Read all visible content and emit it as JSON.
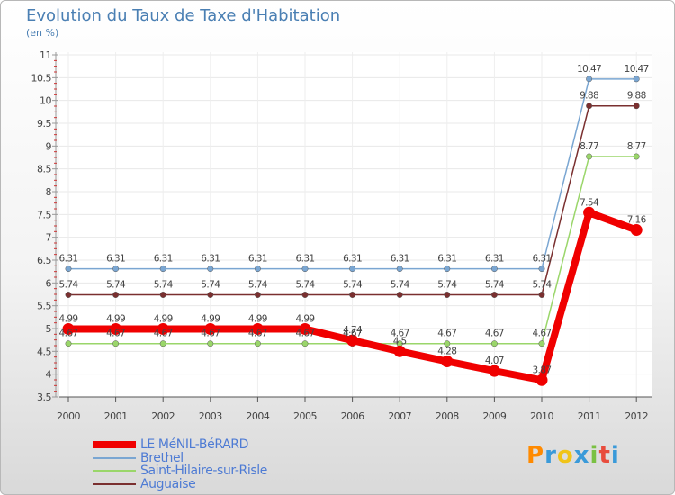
{
  "header": {
    "title": "Evolution du Taux de Taxe d'Habitation",
    "unit": "(en %)"
  },
  "logo": {
    "letters": [
      "P",
      "r",
      "o",
      "x",
      "i",
      "t",
      "i"
    ],
    "colors": [
      "#ff8a00",
      "#3a9ad9",
      "#f0c419",
      "#3a9ad9",
      "#7ac143",
      "#e84c3d",
      "#3a9ad9"
    ]
  },
  "chart_data": {
    "type": "line",
    "title": "Evolution du Taux de Taxe d'Habitation",
    "ylabel": "(en %)",
    "xlabel": "",
    "categories": [
      "2000",
      "2001",
      "2002",
      "2003",
      "2004",
      "2005",
      "2006",
      "2007",
      "2008",
      "2009",
      "2010",
      "2011",
      "2012"
    ],
    "ylim": [
      3.5,
      11
    ],
    "yticks": [
      "3.5",
      "4",
      "4.5",
      "5",
      "5.5",
      "6",
      "6.5",
      "7",
      "7.5",
      "8",
      "8.5",
      "9",
      "9.5",
      "10",
      "10.5",
      "11"
    ],
    "grid": true,
    "legend_position": "bottom-left",
    "series": [
      {
        "name": "Brethel",
        "color": "#7aa6d2",
        "values": [
          6.31,
          6.31,
          6.31,
          6.31,
          6.31,
          6.31,
          6.31,
          6.31,
          6.31,
          6.31,
          6.31,
          10.47,
          10.47
        ],
        "labels": [
          "6.31",
          "6.31",
          "6.31",
          "6.31",
          "6.31",
          "6.31",
          "6.31",
          "6.31",
          "6.31",
          "6.31",
          "6.31",
          "10.47",
          "10.47"
        ]
      },
      {
        "name": "Auguaise",
        "color": "#7a2f2f",
        "values": [
          5.74,
          5.74,
          5.74,
          5.74,
          5.74,
          5.74,
          5.74,
          5.74,
          5.74,
          5.74,
          5.74,
          9.88,
          9.88
        ],
        "labels": [
          "5.74",
          "5.74",
          "5.74",
          "5.74",
          "5.74",
          "5.74",
          "5.74",
          "5.74",
          "5.74",
          "5.74",
          "5.74",
          "9.88",
          "9.88"
        ]
      },
      {
        "name": "Saint-Hilaire-sur-Risle",
        "color": "#9ad66a",
        "values": [
          4.67,
          4.67,
          4.67,
          4.67,
          4.67,
          4.67,
          4.67,
          4.67,
          4.67,
          4.67,
          4.67,
          8.77,
          8.77
        ],
        "labels": [
          "4.67",
          "4.67",
          "4.67",
          "4.67",
          "4.67",
          "4.67",
          "4.67",
          "4.67",
          "4.67",
          "4.67",
          "4.67",
          "8.77",
          "8.77"
        ]
      },
      {
        "name": "LE MéNIL-BéRARD",
        "color": "#f00000",
        "values": [
          4.99,
          4.99,
          4.99,
          4.99,
          4.99,
          4.99,
          4.74,
          4.5,
          4.28,
          4.07,
          3.87,
          7.54,
          7.16
        ],
        "labels": [
          "4.99",
          "4.99",
          "4.99",
          "4.99",
          "4.99",
          "4.99",
          "4.74",
          "4.5",
          "4.28",
          "4.07",
          "3.87",
          "7.54",
          "7.16"
        ]
      }
    ],
    "legend": [
      {
        "name": "LE MéNIL-BéRARD",
        "color": "#f00000"
      },
      {
        "name": "Brethel",
        "color": "#7aa6d2"
      },
      {
        "name": "Saint-Hilaire-sur-Risle",
        "color": "#9ad66a"
      },
      {
        "name": "Auguaise",
        "color": "#7a2f2f"
      }
    ]
  }
}
